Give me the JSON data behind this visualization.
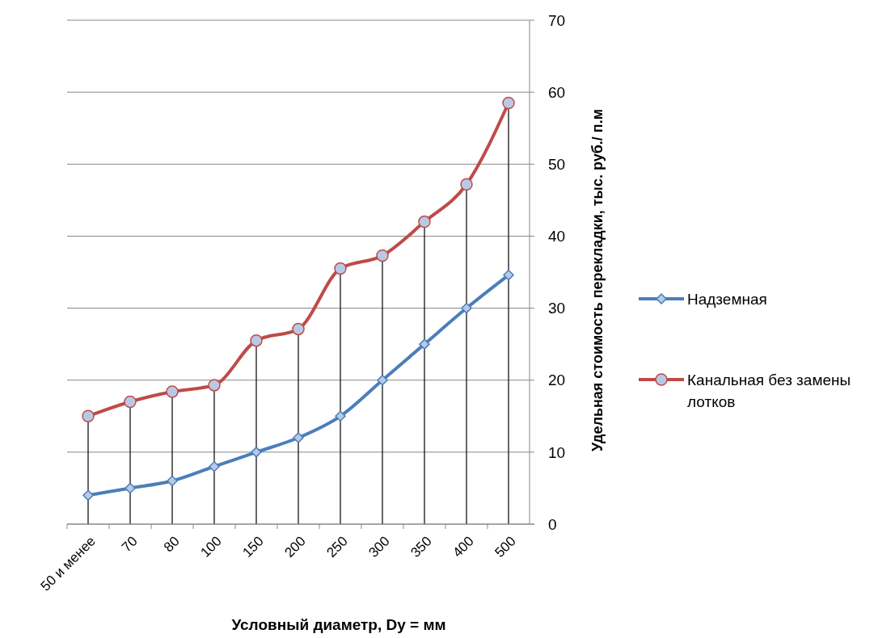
{
  "chart_data": {
    "type": "line",
    "xlabel": "Условный диаметр, Dy = мм",
    "ylabel": "Удельная стоимость перекладки, тыс. руб./ п.м",
    "categories": [
      "50 и менее",
      "70",
      "80",
      "100",
      "150",
      "200",
      "250",
      "300",
      "350",
      "400",
      "500"
    ],
    "series": [
      {
        "name": "Надземная",
        "color": "#4a7ebb",
        "marker": "diamond",
        "values": [
          4,
          5,
          6,
          8,
          10,
          12,
          15,
          20,
          25,
          30,
          34.6
        ]
      },
      {
        "name": "Канальная без замены лотков",
        "color": "#be4b48",
        "marker": "circle",
        "values": [
          15,
          17,
          18.4,
          19.3,
          25.5,
          27.1,
          35.5,
          37.3,
          42,
          47.2,
          58.5
        ],
        "errors": [
          [
            0,
            15
          ],
          [
            0,
            17
          ],
          [
            0,
            18.4
          ],
          [
            0,
            19.3
          ],
          [
            0,
            25.5
          ],
          [
            0,
            27.1
          ],
          [
            0,
            35.5
          ],
          [
            0,
            37.3
          ],
          [
            0,
            42
          ],
          [
            0,
            47.2
          ],
          [
            0,
            58.5
          ]
        ]
      }
    ],
    "ylim": [
      0,
      70
    ],
    "yticks": [
      0,
      10,
      20,
      30,
      40,
      50,
      60,
      70
    ],
    "grid": "y",
    "legend": "right"
  }
}
